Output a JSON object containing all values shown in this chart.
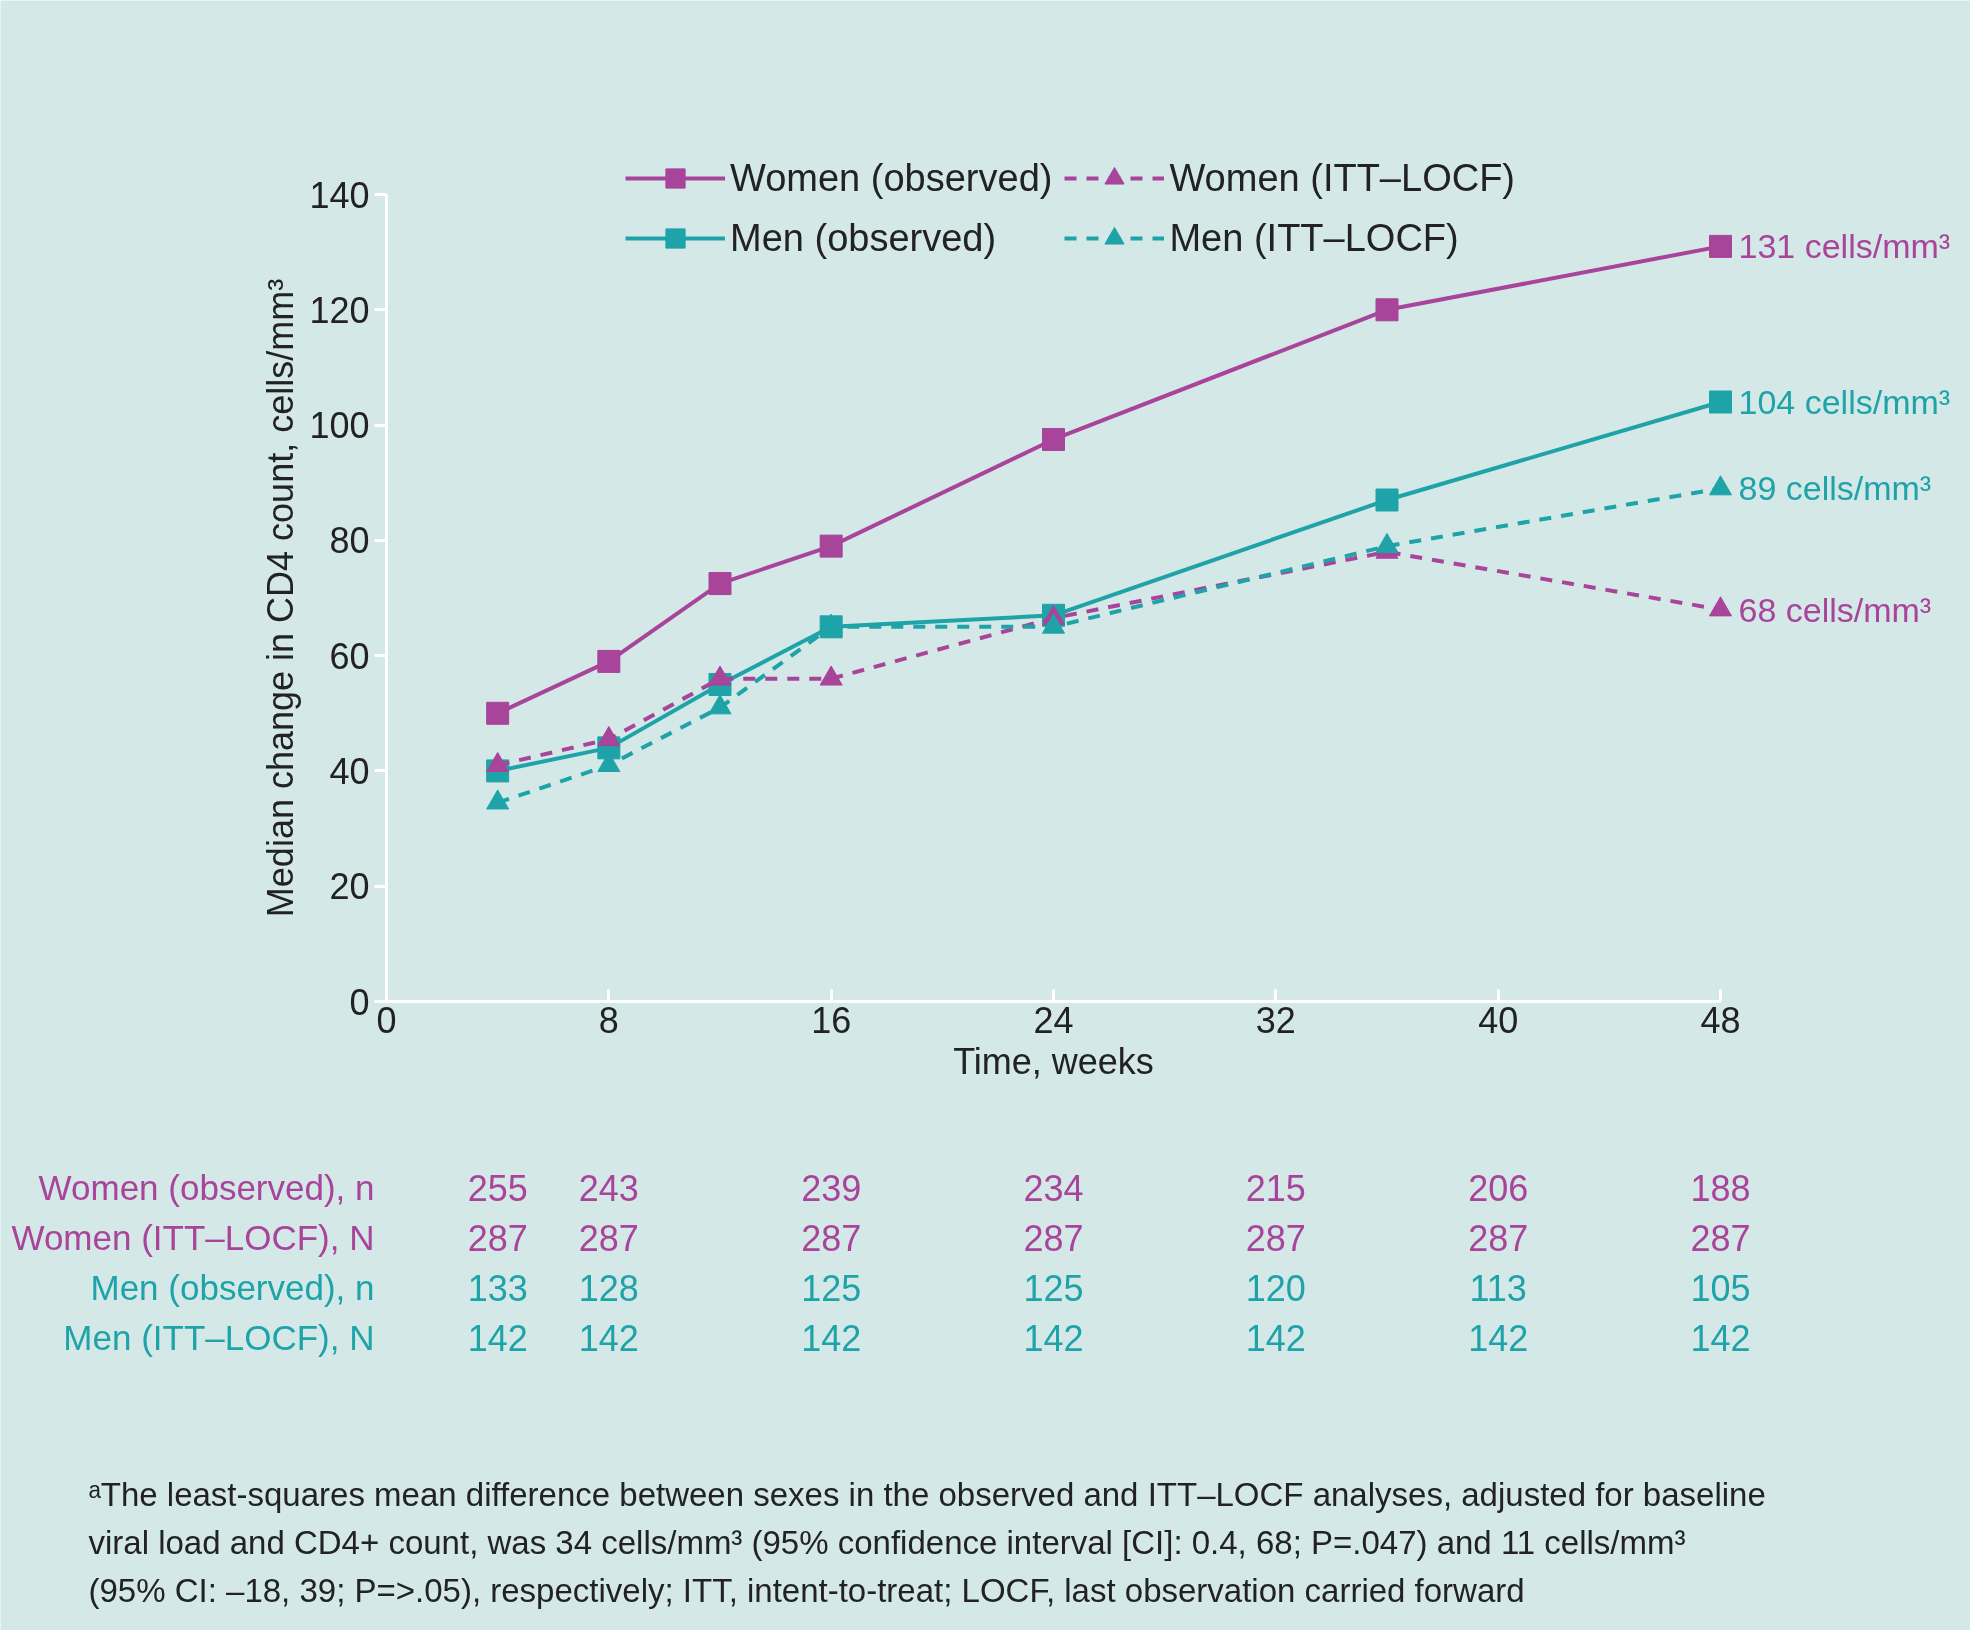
{
  "chart_data": {
    "type": "line",
    "xlabel": "Time, weeks",
    "ylabel": "Median change in CD4 count, cells/mm³",
    "xlim": [
      0,
      48
    ],
    "xticks": [
      0,
      8,
      16,
      24,
      32,
      40,
      48
    ],
    "ylim": [
      0,
      140
    ],
    "yticks": [
      0,
      20,
      40,
      60,
      80,
      100,
      120,
      140
    ],
    "grid": false,
    "legend": "top",
    "series": [
      {
        "name": "Women (observed)",
        "color": "#a8449a",
        "marker": "square",
        "line_style": "solid",
        "x": [
          4,
          8,
          12,
          16,
          24,
          36,
          48
        ],
        "values": [
          50,
          59,
          72.5,
          79,
          97.5,
          120,
          131
        ]
      },
      {
        "name": "Women (ITT–LOCF)",
        "color": "#a8449a",
        "marker": "triangle",
        "line_style": "dashed",
        "x": [
          4,
          8,
          12,
          16,
          24,
          36,
          48
        ],
        "values": [
          41,
          45.5,
          56,
          56,
          66.5,
          78,
          68
        ]
      },
      {
        "name": "Men (observed)",
        "color": "#1ea3a8",
        "marker": "square",
        "line_style": "solid",
        "x": [
          4,
          8,
          12,
          16,
          24,
          36,
          48
        ],
        "values": [
          40,
          44,
          55,
          65,
          67,
          87,
          104
        ]
      },
      {
        "name": "Men (ITT–LOCF)",
        "color": "#1ea3a8",
        "marker": "triangle",
        "line_style": "dashed",
        "x": [
          4,
          8,
          12,
          16,
          24,
          36,
          48
        ],
        "values": [
          34.5,
          41,
          51,
          65,
          65,
          79,
          89
        ]
      }
    ],
    "annotations": [
      "131 cells/mm³",
      "68 cells/mm³",
      "104 cells/mm³",
      "89 cells/mm³",
      "Women (observed), n",
      "255",
      "243",
      "239",
      "234",
      "215",
      "206",
      "188",
      "Women (ITT–LOCF), N",
      "287",
      "287",
      "287",
      "287",
      "287",
      "287",
      "287",
      "Men (observed), n",
      "133",
      "128",
      "125",
      "125",
      "120",
      "113",
      "105",
      "Men (ITT–LOCF), N",
      "142",
      "142",
      "142",
      "142",
      "142",
      "142",
      "142",
      "ᵃThe least-squares mean difference between sexes in the observed and ITT–LOCF analyses, adjusted for baseline\nviral load and CD4+ count, was 34 cells/mm³ (95% confidence interval [CI]: 0.4, 68; P=.047) and 11 cells/mm³\n(95% CI: –18, 39; P=>.05), respectively; ITT, intent-to-treat; LOCF, last observation carried forward"
    ]
  }
}
